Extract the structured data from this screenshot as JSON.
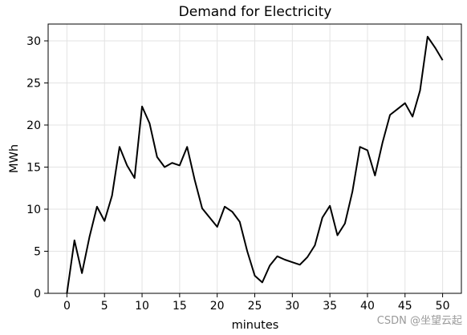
{
  "chart_data": {
    "type": "line",
    "title": "Demand for Electricity",
    "xlabel": "minutes",
    "ylabel": "MWh",
    "xlim": [
      -2.5,
      52.5
    ],
    "ylim": [
      0,
      32
    ],
    "xticks": [
      0,
      5,
      10,
      15,
      20,
      25,
      30,
      35,
      40,
      45,
      50
    ],
    "yticks": [
      0,
      5,
      10,
      15,
      20,
      25,
      30
    ],
    "grid": true,
    "series": [
      {
        "color": "#000000",
        "x": [
          0,
          1,
          2,
          3,
          4,
          5,
          6,
          7,
          8,
          9,
          10,
          11,
          12,
          13,
          14,
          15,
          16,
          17,
          18,
          19,
          20,
          21,
          22,
          23,
          24,
          25,
          26,
          27,
          28,
          29,
          30,
          31,
          32,
          33,
          34,
          35,
          36,
          37,
          38,
          39,
          40,
          41,
          42,
          43,
          44,
          45,
          46,
          47,
          48,
          49,
          50
        ],
        "values": [
          0.0,
          6.3,
          2.4,
          6.7,
          10.3,
          8.6,
          11.6,
          17.4,
          15.2,
          13.7,
          22.2,
          20.2,
          16.2,
          15.0,
          15.5,
          15.2,
          17.4,
          13.5,
          10.1,
          9.0,
          7.9,
          10.3,
          9.7,
          8.5,
          5.0,
          2.1,
          1.3,
          3.3,
          4.4,
          4.0,
          3.7,
          3.4,
          4.3,
          5.7,
          9.0,
          10.4,
          6.9,
          8.3,
          12.1,
          17.4,
          17.0,
          14.0,
          17.9,
          21.2,
          21.9,
          22.6,
          21.0,
          24.1,
          30.5,
          29.2,
          27.7
        ]
      }
    ]
  },
  "watermark": "CSDN @坐望云起"
}
